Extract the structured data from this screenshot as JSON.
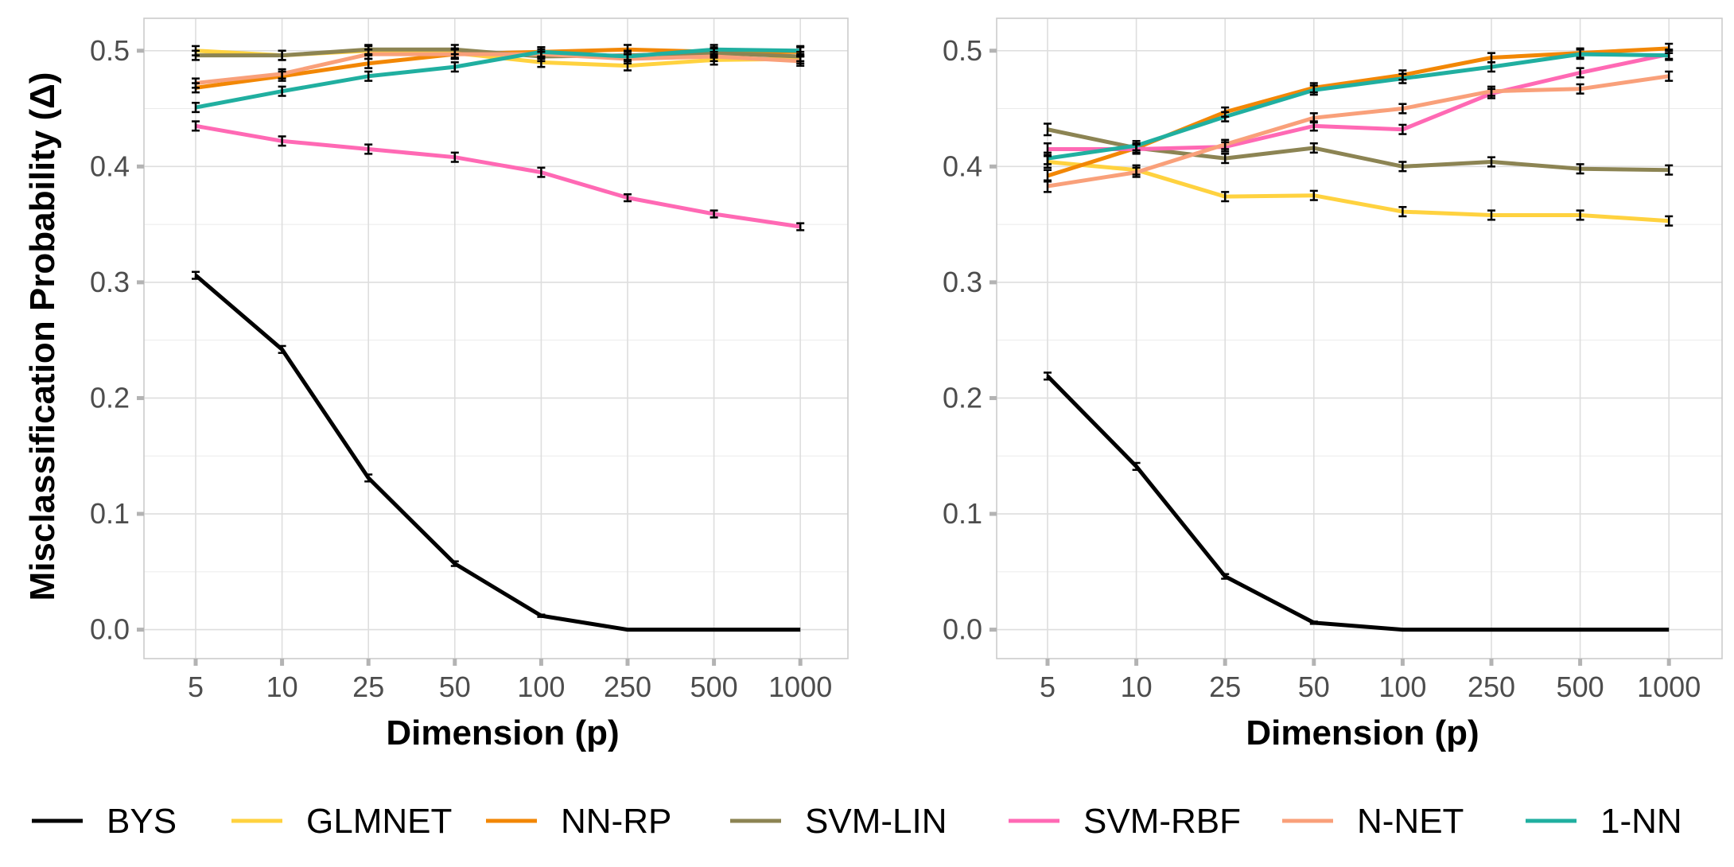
{
  "chart_data": [
    {
      "type": "line",
      "title": "",
      "xlabel": "Dimension (p)",
      "ylabel": "Misclassification  Probability (Δ)",
      "categories": [
        "5",
        "10",
        "25",
        "50",
        "100",
        "250",
        "500",
        "1000"
      ],
      "ylim": [
        -0.025,
        0.528
      ],
      "yticks": [
        "0.0",
        "0.1",
        "0.2",
        "0.3",
        "0.4",
        "0.5"
      ],
      "grid": true,
      "series": [
        {
          "name": "BYS",
          "color": "#000000",
          "values": [
            0.306,
            0.242,
            0.131,
            0.057,
            0.012,
            0.0,
            0.0,
            0.0
          ],
          "err": [
            0.003,
            0.003,
            0.003,
            0.002,
            0.001,
            0.0,
            0.0,
            0.0
          ]
        },
        {
          "name": "GLMNET",
          "color": "#FFD23F",
          "values": [
            0.5,
            0.496,
            0.5,
            0.498,
            0.49,
            0.487,
            0.492,
            0.493
          ],
          "err": [
            0.004,
            0.004,
            0.004,
            0.004,
            0.004,
            0.004,
            0.004,
            0.004
          ]
        },
        {
          "name": "NN-RP",
          "color": "#F28705",
          "values": [
            0.468,
            0.478,
            0.489,
            0.497,
            0.499,
            0.501,
            0.499,
            0.499
          ],
          "err": [
            0.004,
            0.004,
            0.004,
            0.004,
            0.004,
            0.004,
            0.004,
            0.004
          ]
        },
        {
          "name": "SVM-LIN",
          "color": "#8C8453",
          "values": [
            0.496,
            0.496,
            0.501,
            0.501,
            0.495,
            0.496,
            0.498,
            0.495
          ],
          "err": [
            0.004,
            0.004,
            0.004,
            0.004,
            0.004,
            0.004,
            0.004,
            0.004
          ]
        },
        {
          "name": "SVM-RBF",
          "color": "#FF69B4",
          "values": [
            0.435,
            0.422,
            0.415,
            0.408,
            0.395,
            0.373,
            0.359,
            0.348
          ],
          "err": [
            0.004,
            0.004,
            0.004,
            0.004,
            0.004,
            0.003,
            0.003,
            0.003
          ]
        },
        {
          "name": "N-NET",
          "color": "#F9A07A",
          "values": [
            0.472,
            0.48,
            0.497,
            0.497,
            0.497,
            0.493,
            0.495,
            0.491
          ],
          "err": [
            0.004,
            0.004,
            0.004,
            0.004,
            0.004,
            0.004,
            0.004,
            0.004
          ]
        },
        {
          "name": "1-NN",
          "color": "#20AFA0",
          "values": [
            0.451,
            0.465,
            0.478,
            0.486,
            0.499,
            0.495,
            0.501,
            0.5
          ],
          "err": [
            0.004,
            0.004,
            0.004,
            0.004,
            0.004,
            0.004,
            0.004,
            0.004
          ]
        }
      ]
    },
    {
      "type": "line",
      "title": "",
      "xlabel": "Dimension (p)",
      "ylabel": "",
      "categories": [
        "5",
        "10",
        "25",
        "50",
        "100",
        "250",
        "500",
        "1000"
      ],
      "ylim": [
        -0.025,
        0.528
      ],
      "yticks": [
        "0.0",
        "0.1",
        "0.2",
        "0.3",
        "0.4",
        "0.5"
      ],
      "grid": true,
      "series": [
        {
          "name": "BYS",
          "color": "#000000",
          "values": [
            0.219,
            0.141,
            0.046,
            0.006,
            0.0,
            0.0,
            0.0,
            0.0
          ],
          "err": [
            0.003,
            0.003,
            0.002,
            0.001,
            0.0,
            0.0,
            0.0,
            0.0
          ]
        },
        {
          "name": "GLMNET",
          "color": "#FFD23F",
          "values": [
            0.404,
            0.397,
            0.374,
            0.375,
            0.361,
            0.358,
            0.358,
            0.353
          ],
          "err": [
            0.005,
            0.004,
            0.004,
            0.004,
            0.004,
            0.004,
            0.004,
            0.004
          ]
        },
        {
          "name": "NN-RP",
          "color": "#F28705",
          "values": [
            0.392,
            0.416,
            0.447,
            0.468,
            0.479,
            0.494,
            0.498,
            0.502
          ],
          "err": [
            0.005,
            0.004,
            0.004,
            0.004,
            0.004,
            0.004,
            0.004,
            0.004
          ]
        },
        {
          "name": "SVM-LIN",
          "color": "#8C8453",
          "values": [
            0.432,
            0.416,
            0.407,
            0.416,
            0.4,
            0.404,
            0.398,
            0.397
          ],
          "err": [
            0.005,
            0.004,
            0.004,
            0.004,
            0.004,
            0.004,
            0.004,
            0.004
          ]
        },
        {
          "name": "SVM-RBF",
          "color": "#FF69B4",
          "values": [
            0.415,
            0.415,
            0.417,
            0.435,
            0.432,
            0.463,
            0.481,
            0.497
          ],
          "err": [
            0.005,
            0.004,
            0.004,
            0.004,
            0.004,
            0.004,
            0.004,
            0.004
          ]
        },
        {
          "name": "N-NET",
          "color": "#F9A07A",
          "values": [
            0.383,
            0.395,
            0.419,
            0.442,
            0.45,
            0.465,
            0.467,
            0.478
          ],
          "err": [
            0.005,
            0.004,
            0.004,
            0.004,
            0.004,
            0.004,
            0.004,
            0.004
          ]
        },
        {
          "name": "1-NN",
          "color": "#20AFA0",
          "values": [
            0.407,
            0.418,
            0.443,
            0.466,
            0.476,
            0.486,
            0.497,
            0.496
          ],
          "err": [
            0.005,
            0.004,
            0.004,
            0.004,
            0.004,
            0.004,
            0.004,
            0.004
          ]
        }
      ]
    }
  ],
  "legend": {
    "position": "bottom",
    "items": [
      {
        "label": "BYS",
        "color": "#000000"
      },
      {
        "label": "GLMNET",
        "color": "#FFD23F"
      },
      {
        "label": "NN-RP",
        "color": "#F28705"
      },
      {
        "label": "SVM-LIN",
        "color": "#8C8453"
      },
      {
        "label": "SVM-RBF",
        "color": "#FF69B4"
      },
      {
        "label": "N-NET",
        "color": "#F9A07A"
      },
      {
        "label": "1-NN",
        "color": "#20AFA0"
      }
    ]
  }
}
